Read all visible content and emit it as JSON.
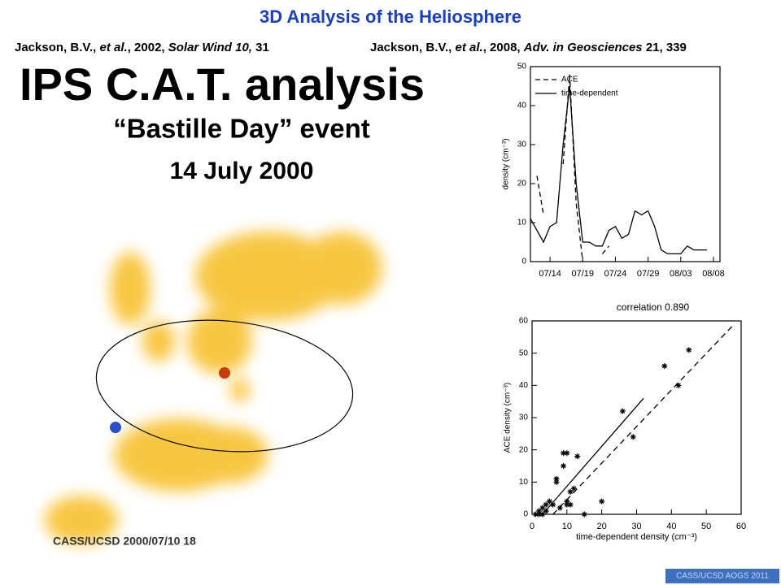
{
  "header": {
    "title": "3D Analysis of the Heliosphere",
    "references": [
      [
        "Jackson, B.V., ",
        "et al.",
        ", 2002, ",
        "Solar Wind 10,",
        " 31"
      ],
      [
        "Jackson, B.V., ",
        "et al.",
        ", 2008, ",
        "Adv. in Geosciences",
        " 21, 339"
      ]
    ]
  },
  "heading": "IPS C.A.T. analysis",
  "event": {
    "name": "“Bastille Day” event",
    "date": "14 July 2000"
  },
  "image": {
    "caption": "CASS/UCSD 2000/07/10 18"
  },
  "footer": "CASS/UCSD AOGS 2011",
  "chart_data": [
    {
      "type": "line",
      "ylabel": "density (cm⁻³)",
      "legend": "upper left",
      "x": [
        "07/11",
        "07/12",
        "07/13",
        "07/14",
        "07/15",
        "07/16",
        "07/17",
        "07/18",
        "07/19",
        "07/20",
        "07/21",
        "07/22",
        "07/23",
        "07/24",
        "07/25",
        "07/26",
        "07/27",
        "07/28",
        "07/29",
        "07/30",
        "07/31",
        "08/01",
        "08/02",
        "08/03",
        "08/04",
        "08/05",
        "08/06",
        "08/07"
      ],
      "series": [
        {
          "name": "ACE",
          "color": "#000000",
          "dash": true,
          "values": [
            null,
            22,
            12,
            null,
            null,
            25,
            48,
            15,
            0,
            null,
            null,
            2,
            4,
            null,
            null,
            null,
            null,
            null,
            null,
            null,
            null,
            null,
            null,
            null,
            null,
            null,
            null,
            null
          ]
        },
        {
          "name": "time-dependent",
          "color": "#000000",
          "dash": false,
          "values": [
            11,
            8,
            5,
            9,
            10,
            30,
            45,
            20,
            5,
            5,
            4,
            4,
            8,
            9,
            6,
            7,
            13,
            12,
            13,
            9,
            3,
            2,
            2,
            2,
            4,
            3,
            3,
            3
          ]
        }
      ],
      "xlim": [
        "07/11",
        "08/09"
      ],
      "xticks": [
        "07/14",
        "07/19",
        "07/24",
        "07/29",
        "08/03",
        "08/08"
      ],
      "ylim": [
        0,
        50
      ],
      "yticks": [
        0,
        10,
        20,
        30,
        40,
        50
      ]
    },
    {
      "type": "scatter",
      "title": "correlation 0.890",
      "xlabel": "time-dependent density (cm⁻³)",
      "ylabel": "ACE density (cm⁻³)",
      "color": "#000000",
      "x": [
        2,
        3,
        4,
        5,
        4,
        1,
        2,
        6,
        7,
        7,
        9,
        10,
        9,
        10,
        11,
        11,
        12,
        13,
        15,
        20,
        26,
        29,
        38,
        42,
        45,
        8,
        10,
        3
      ],
      "y": [
        1,
        2,
        3,
        4,
        1,
        0,
        0,
        3,
        10,
        11,
        19,
        19,
        15,
        4,
        3,
        7,
        8,
        18,
        0,
        4,
        32,
        24,
        46,
        40,
        51,
        2,
        3,
        0
      ],
      "lines": [
        {
          "dash": false,
          "x": [
            3,
            32
          ],
          "y": [
            0,
            36
          ]
        },
        {
          "dash": true,
          "x": [
            6,
            58
          ],
          "y": [
            0,
            59
          ]
        }
      ],
      "xlim": [
        0,
        60
      ],
      "xticks": [
        0,
        10,
        20,
        30,
        40,
        50,
        60
      ],
      "ylim": [
        0,
        60
      ],
      "yticks": [
        0,
        10,
        20,
        30,
        40,
        50,
        60
      ]
    }
  ]
}
